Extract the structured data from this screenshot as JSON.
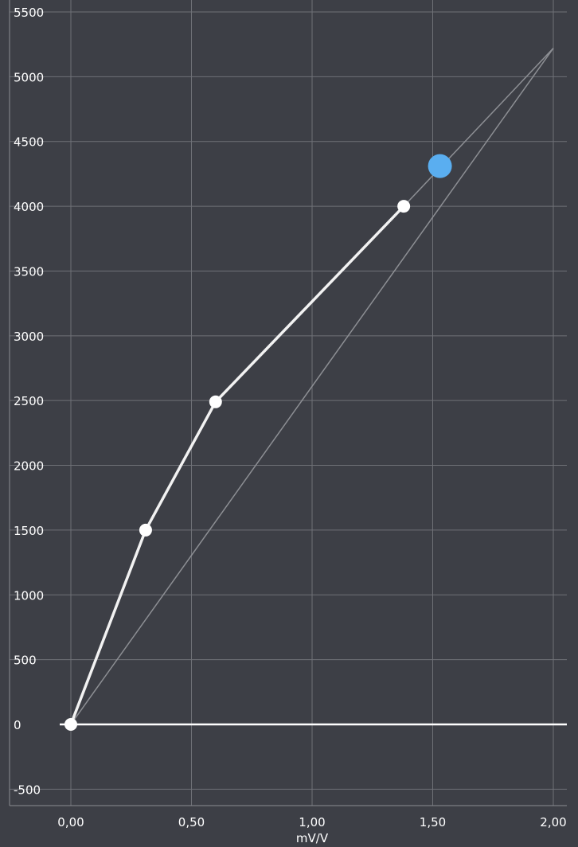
{
  "chart_data": {
    "type": "line",
    "xlabel": "mV/V",
    "ylabel": "",
    "xlim": [
      0,
      2
    ],
    "ylim": [
      -500,
      5500
    ],
    "x_ticks": [
      0,
      0.5,
      1,
      1.5,
      2
    ],
    "x_tick_labels": [
      "0,00",
      "0,50",
      "1,00",
      "1,50",
      "2,00"
    ],
    "y_ticks": [
      -500,
      0,
      500,
      1000,
      1500,
      2000,
      2500,
      3000,
      3500,
      4000,
      4500,
      5000,
      5500
    ],
    "y_tick_labels": [
      "-500",
      "0",
      "500",
      "1000",
      "1500",
      "2000",
      "2500",
      "3000",
      "3500",
      "4000",
      "4500",
      "5000",
      "5500"
    ],
    "grid": true,
    "series": [
      {
        "role": "calibration",
        "points": [
          [
            0,
            0
          ],
          [
            0.31,
            1500
          ],
          [
            0.6,
            2490
          ],
          [
            1.38,
            4000
          ]
        ]
      },
      {
        "role": "reference-line-to-end",
        "points": [
          [
            0,
            0
          ],
          [
            2,
            5220
          ]
        ]
      },
      {
        "role": "extension",
        "points": [
          [
            1.38,
            4000
          ],
          [
            2,
            5220
          ]
        ]
      }
    ],
    "current_point": {
      "x": 1.53,
      "y": 4310
    },
    "colors": {
      "background": "#3d3f46",
      "grid": "#6f7177",
      "calibration_line": "#f2f2f2",
      "reference_line": "#8d8f94",
      "current_point": "#5aaef0"
    }
  }
}
